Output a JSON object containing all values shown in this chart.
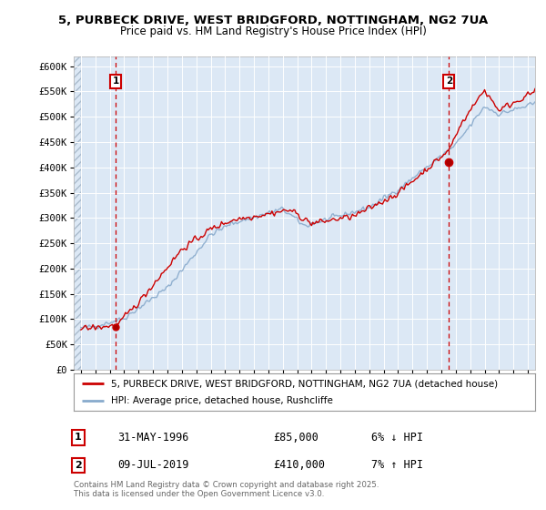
{
  "title1": "5, PURBECK DRIVE, WEST BRIDGFORD, NOTTINGHAM, NG2 7UA",
  "title2": "Price paid vs. HM Land Registry's House Price Index (HPI)",
  "bg_color": "#ffffff",
  "plot_bg_color": "#dce8f5",
  "line1_color": "#cc0000",
  "line2_color": "#88aacc",
  "sale1_date_x": 1996.41,
  "sale1_price": 85000,
  "sale2_date_x": 2019.52,
  "sale2_price": 410000,
  "ylim_max": 620000,
  "ylim_min": 0,
  "xlim_min": 1993.5,
  "xlim_max": 2025.5,
  "legend_line1": "5, PURBECK DRIVE, WEST BRIDGFORD, NOTTINGHAM, NG2 7UA (detached house)",
  "legend_line2": "HPI: Average price, detached house, Rushcliffe",
  "annotation1_date": "31-MAY-1996",
  "annotation1_price": "£85,000",
  "annotation1_change": "6% ↓ HPI",
  "annotation2_date": "09-JUL-2019",
  "annotation2_price": "£410,000",
  "annotation2_change": "7% ↑ HPI",
  "footer": "Contains HM Land Registry data © Crown copyright and database right 2025.\nThis data is licensed under the Open Government Licence v3.0.",
  "yticks": [
    0,
    50000,
    100000,
    150000,
    200000,
    250000,
    300000,
    350000,
    400000,
    450000,
    500000,
    550000,
    600000
  ],
  "ytick_labels": [
    "£0",
    "£50K",
    "£100K",
    "£150K",
    "£200K",
    "£250K",
    "£300K",
    "£350K",
    "£400K",
    "£450K",
    "£500K",
    "£550K",
    "£600K"
  ]
}
